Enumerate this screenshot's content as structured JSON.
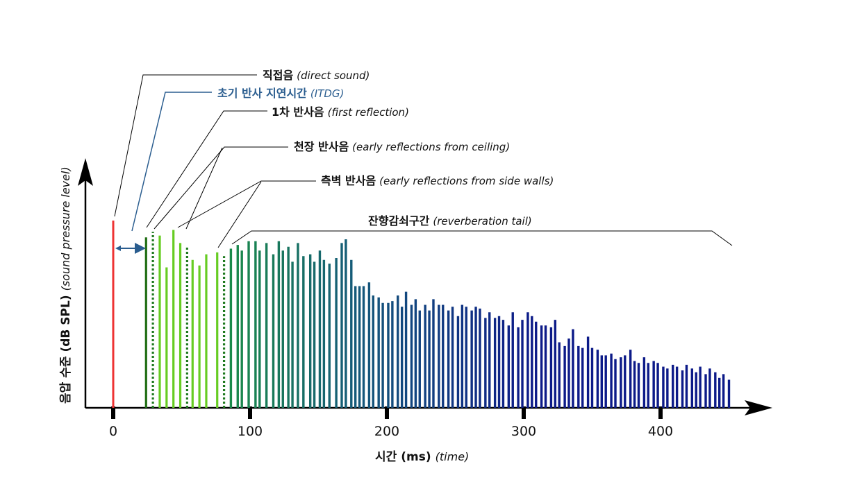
{
  "labels": {
    "direct": {
      "kr": "직접음",
      "en": "direct sound"
    },
    "itdg": {
      "kr": "초기 반사 지연시간",
      "en": "ITDG"
    },
    "first": {
      "kr": "1차 반사음",
      "en": "first reflection"
    },
    "ceiling": {
      "kr": "천장 반사음",
      "en": "early reflections from ceiling"
    },
    "side": {
      "kr": "측벽 반사음",
      "en": "early reflections from side walls"
    },
    "tail": {
      "kr": "잔향감쇠구간",
      "en": "reverberation tail"
    }
  },
  "axes": {
    "x": {
      "kr": "시간",
      "bold": "(ms)",
      "en": "(time)",
      "ticks": [
        "0",
        "100",
        "200",
        "300",
        "400"
      ],
      "tick_values": [
        0,
        100,
        200,
        300,
        400
      ],
      "range": [
        0,
        450
      ]
    },
    "y": {
      "kr": "음압 수준",
      "bold": "(dB SPL)",
      "en": "(sound pressure level)"
    }
  },
  "colors": {
    "direct": "#ee3333",
    "first": "#1f6d12",
    "early": "#66cc22",
    "dotted": "#1f7a1f",
    "tail_start": "#1a8a4a",
    "tail_mid": "#155a7a",
    "tail_end": "#0c1a88",
    "itdg": "#2a5d8f"
  },
  "chart_data": {
    "type": "bar",
    "x_unit": "ms",
    "direct": [
      {
        "t": 0,
        "level": 100
      }
    ],
    "first_reflection": [
      {
        "t": 24,
        "level": 91
      }
    ],
    "ceiling_reflections": [
      {
        "t": 29,
        "level": 94
      },
      {
        "t": 54,
        "level": 86
      },
      {
        "t": 81,
        "level": 81
      }
    ],
    "side_wall_reflections": [
      {
        "t": 34,
        "level": 92
      },
      {
        "t": 39,
        "level": 75
      },
      {
        "t": 44,
        "level": 95
      },
      {
        "t": 49,
        "level": 88
      },
      {
        "t": 58,
        "level": 79
      },
      {
        "t": 63,
        "level": 76
      },
      {
        "t": 68,
        "level": 82
      },
      {
        "t": 76,
        "level": 83
      }
    ],
    "reverberation_tail": [
      {
        "t": 86,
        "level": 85
      },
      {
        "t": 91,
        "level": 87
      },
      {
        "t": 94,
        "level": 84
      },
      {
        "t": 99,
        "level": 89
      },
      {
        "t": 104,
        "level": 89
      },
      {
        "t": 107,
        "level": 84
      },
      {
        "t": 112,
        "level": 88
      },
      {
        "t": 117,
        "level": 82
      },
      {
        "t": 121,
        "level": 89
      },
      {
        "t": 124,
        "level": 84
      },
      {
        "t": 128,
        "level": 86
      },
      {
        "t": 131,
        "level": 78
      },
      {
        "t": 135,
        "level": 88
      },
      {
        "t": 139,
        "level": 81
      },
      {
        "t": 144,
        "level": 82
      },
      {
        "t": 147,
        "level": 78
      },
      {
        "t": 151,
        "level": 84
      },
      {
        "t": 154,
        "level": 79
      },
      {
        "t": 158,
        "level": 77
      },
      {
        "t": 163,
        "level": 80
      },
      {
        "t": 167,
        "level": 88
      },
      {
        "t": 170,
        "level": 90
      },
      {
        "t": 174,
        "level": 79
      },
      {
        "t": 177,
        "level": 65
      },
      {
        "t": 180,
        "level": 65
      },
      {
        "t": 183,
        "level": 65
      },
      {
        "t": 187,
        "level": 67
      },
      {
        "t": 190,
        "level": 60
      },
      {
        "t": 194,
        "level": 59
      },
      {
        "t": 197,
        "level": 56
      },
      {
        "t": 201,
        "level": 56
      },
      {
        "t": 204,
        "level": 57
      },
      {
        "t": 208,
        "level": 60
      },
      {
        "t": 211,
        "level": 54
      },
      {
        "t": 214,
        "level": 62
      },
      {
        "t": 218,
        "level": 55
      },
      {
        "t": 221,
        "level": 58
      },
      {
        "t": 224,
        "level": 52
      },
      {
        "t": 228,
        "level": 55
      },
      {
        "t": 231,
        "level": 52
      },
      {
        "t": 234,
        "level": 58
      },
      {
        "t": 238,
        "level": 55
      },
      {
        "t": 241,
        "level": 55
      },
      {
        "t": 245,
        "level": 52
      },
      {
        "t": 248,
        "level": 54
      },
      {
        "t": 252,
        "level": 49
      },
      {
        "t": 255,
        "level": 55
      },
      {
        "t": 258,
        "level": 54
      },
      {
        "t": 262,
        "level": 52
      },
      {
        "t": 265,
        "level": 54
      },
      {
        "t": 268,
        "level": 53
      },
      {
        "t": 272,
        "level": 48
      },
      {
        "t": 275,
        "level": 51
      },
      {
        "t": 279,
        "level": 48
      },
      {
        "t": 282,
        "level": 49
      },
      {
        "t": 285,
        "level": 47
      },
      {
        "t": 289,
        "level": 44
      },
      {
        "t": 292,
        "level": 51
      },
      {
        "t": 296,
        "level": 43
      },
      {
        "t": 299,
        "level": 47
      },
      {
        "t": 303,
        "level": 51
      },
      {
        "t": 306,
        "level": 49
      },
      {
        "t": 309,
        "level": 46
      },
      {
        "t": 313,
        "level": 44
      },
      {
        "t": 316,
        "level": 44
      },
      {
        "t": 320,
        "level": 43
      },
      {
        "t": 323,
        "level": 47
      },
      {
        "t": 326,
        "level": 35
      },
      {
        "t": 330,
        "level": 33
      },
      {
        "t": 333,
        "level": 37
      },
      {
        "t": 336,
        "level": 42
      },
      {
        "t": 340,
        "level": 33
      },
      {
        "t": 343,
        "level": 32
      },
      {
        "t": 347,
        "level": 38
      },
      {
        "t": 350,
        "level": 32
      },
      {
        "t": 354,
        "level": 31
      },
      {
        "t": 357,
        "level": 28
      },
      {
        "t": 360,
        "level": 28
      },
      {
        "t": 364,
        "level": 29
      },
      {
        "t": 367,
        "level": 26
      },
      {
        "t": 371,
        "level": 27
      },
      {
        "t": 374,
        "level": 28
      },
      {
        "t": 378,
        "level": 31
      },
      {
        "t": 381,
        "level": 25
      },
      {
        "t": 384,
        "level": 24
      },
      {
        "t": 388,
        "level": 27
      },
      {
        "t": 391,
        "level": 24
      },
      {
        "t": 395,
        "level": 25
      },
      {
        "t": 398,
        "level": 24
      },
      {
        "t": 402,
        "level": 22
      },
      {
        "t": 405,
        "level": 21
      },
      {
        "t": 409,
        "level": 23
      },
      {
        "t": 412,
        "level": 22
      },
      {
        "t": 416,
        "level": 20
      },
      {
        "t": 419,
        "level": 23
      },
      {
        "t": 423,
        "level": 21
      },
      {
        "t": 426,
        "level": 19
      },
      {
        "t": 429,
        "level": 22
      },
      {
        "t": 433,
        "level": 18
      },
      {
        "t": 436,
        "level": 21
      },
      {
        "t": 440,
        "level": 19
      },
      {
        "t": 443,
        "level": 16
      },
      {
        "t": 446,
        "level": 18
      },
      {
        "t": 450,
        "level": 15
      }
    ]
  }
}
